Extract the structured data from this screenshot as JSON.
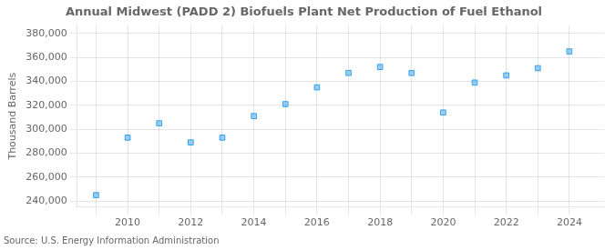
{
  "chart_data": {
    "type": "scatter",
    "title": "Annual Midwest (PADD 2) Biofuels Plant Net Production of Fuel Ethanol",
    "ylabel": "Thousand Barrels",
    "source": "Source: U.S. Energy Information Administration",
    "x": [
      2009,
      2010,
      2011,
      2012,
      2013,
      2014,
      2015,
      2016,
      2017,
      2018,
      2019,
      2020,
      2021,
      2022,
      2023,
      2024
    ],
    "values": [
      245000,
      293000,
      305000,
      289000,
      293000,
      311000,
      321000,
      335000,
      347000,
      352000,
      347000,
      314000,
      339000,
      345000,
      351000,
      365000
    ],
    "marker": "square",
    "xlim": [
      2008.4,
      2025.1
    ],
    "xticks": [
      {
        "value": 2009,
        "label": null
      },
      2010,
      {
        "value": 2011,
        "label": null
      },
      2012,
      {
        "value": 2013,
        "label": null
      },
      2014,
      {
        "value": 2015,
        "label": null
      },
      2016,
      {
        "value": 2017,
        "label": null
      },
      2018,
      {
        "value": 2019,
        "label": null
      },
      2020,
      {
        "value": 2021,
        "label": null
      },
      2022,
      {
        "value": 2023,
        "label": null
      },
      2024
    ],
    "ylim": [
      235000,
      387000
    ],
    "yticks": [
      {
        "value": 240000,
        "label": "240,000"
      },
      {
        "value": 260000,
        "label": "260,000"
      },
      {
        "value": 280000,
        "label": "280,000"
      },
      {
        "value": 300000,
        "label": "300,000"
      },
      {
        "value": 320000,
        "label": "320,000"
      },
      {
        "value": 340000,
        "label": "340,000"
      },
      {
        "value": 360000,
        "label": "360,000"
      },
      {
        "value": 380000,
        "label": "380,000"
      }
    ],
    "grid": true
  }
}
